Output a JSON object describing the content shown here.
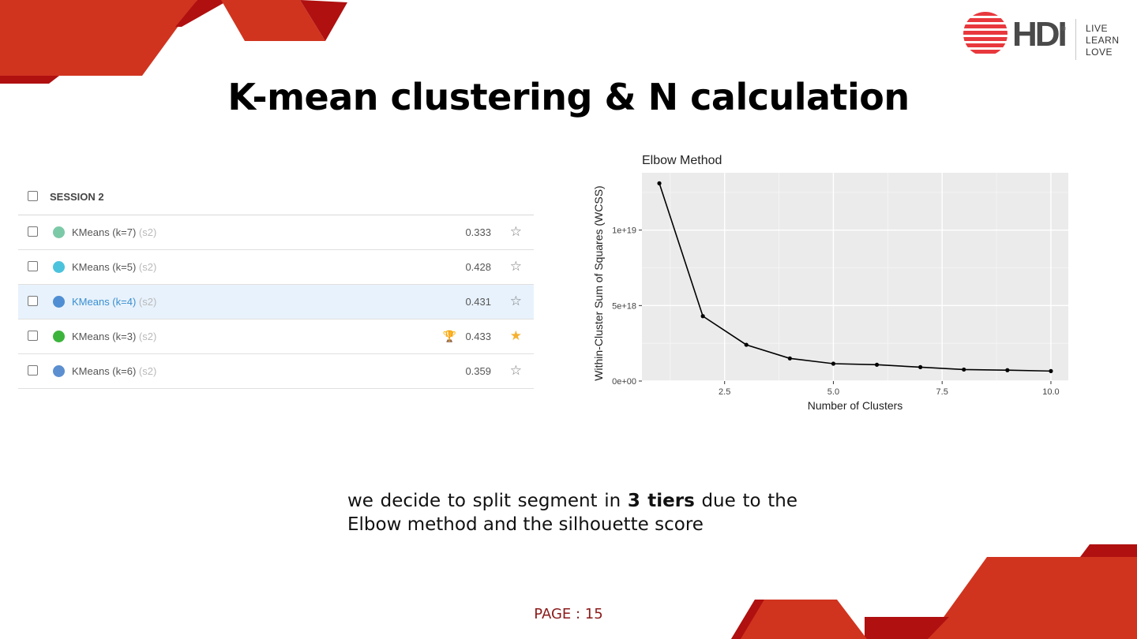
{
  "slide": {
    "title": "K-mean clustering & N calculation",
    "page_label": "PAGE : 15",
    "caption_pre": "we decide to split segment in ",
    "caption_bold": "3 tiers",
    "caption_post": " due to the Elbow method and the silhouette score"
  },
  "logo": {
    "brand": "HDI",
    "registered": "®",
    "words": [
      "LIVE",
      "LEARN",
      "LOVE"
    ]
  },
  "session": {
    "header": "SESSION 2",
    "rows": [
      {
        "name": "KMeans (k=7)",
        "tag": "(s2)",
        "score": "0.333",
        "dot_color": "#7cc9a8",
        "favorite": false,
        "trophy": false,
        "selected": false
      },
      {
        "name": "KMeans (k=5)",
        "tag": "(s2)",
        "score": "0.428",
        "dot_color": "#4cc3dc",
        "favorite": false,
        "trophy": false,
        "selected": false
      },
      {
        "name": "KMeans (k=4)",
        "tag": "(s2)",
        "score": "0.431",
        "dot_color": "#4f8ed2",
        "favorite": false,
        "trophy": false,
        "selected": true
      },
      {
        "name": "KMeans (k=3)",
        "tag": "(s2)",
        "score": "0.433",
        "dot_color": "#3cb43c",
        "favorite": true,
        "trophy": true,
        "selected": false
      },
      {
        "name": "KMeans (k=6)",
        "tag": "(s2)",
        "score": "0.359",
        "dot_color": "#5b8fd0",
        "favorite": false,
        "trophy": false,
        "selected": false
      }
    ]
  },
  "chart_data": {
    "type": "line",
    "title": "Elbow Method",
    "xlabel": "Number of Clusters",
    "ylabel": "Within-Cluster Sum of Squares (WCSS)",
    "x": [
      1,
      2,
      3,
      4,
      5,
      6,
      7,
      8,
      9,
      10
    ],
    "y": [
      1.31e+19,
      4.3e+18,
      2.4e+18,
      1.5e+18,
      1.15e+18,
      1.08e+18,
      9.2e+17,
      7.6e+17,
      7.2e+17,
      6.6e+17
    ],
    "xlim": [
      0.6,
      10.4
    ],
    "ylim": [
      0,
      1.38e+19
    ],
    "xticks": [
      2.5,
      5.0,
      7.5,
      10.0
    ],
    "xtick_labels": [
      "2.5",
      "5.0",
      "7.5",
      "10.0"
    ],
    "yticks": [
      0,
      5e+18,
      1e+19
    ],
    "ytick_labels": [
      "0e+00",
      "5e+18",
      "1e+19"
    ],
    "grid": true,
    "colors": {
      "panel": "#ebebeb",
      "grid": "#ffffff",
      "line": "#000000"
    }
  },
  "colors": {
    "accent_red": "#d0341f",
    "dark_red": "#b01010",
    "page_label": "#8b1a1a"
  }
}
